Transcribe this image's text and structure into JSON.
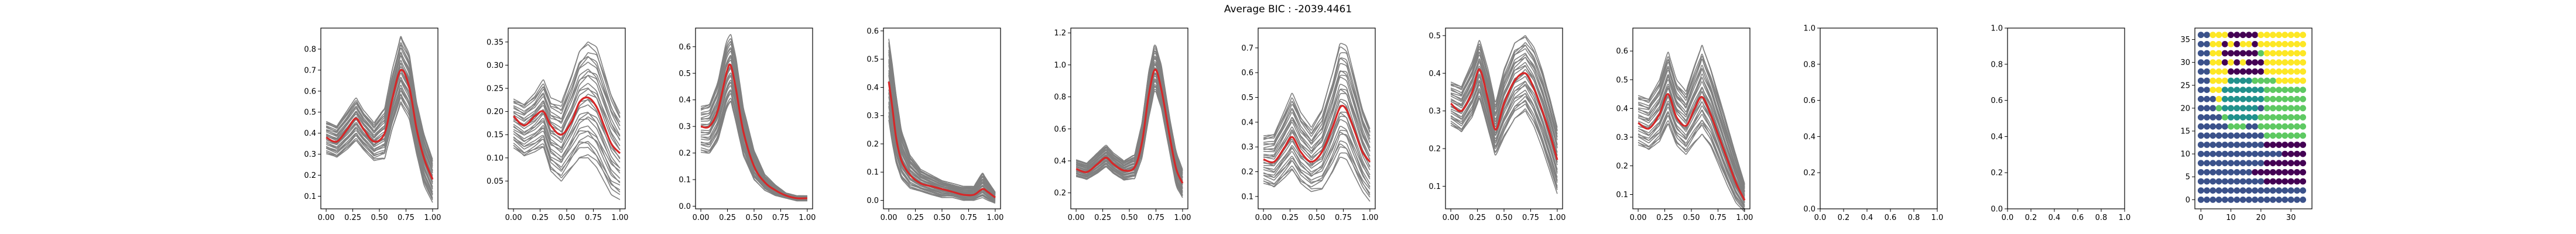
{
  "figure": {
    "title": "Average BIC : -2039.4461"
  },
  "chart_data": [
    {
      "type": "line",
      "panel": 1,
      "xticks": [
        "0.00",
        "0.25",
        "0.50",
        "0.75",
        "1.00"
      ],
      "yticks": [
        "0.1",
        "0.2",
        "0.3",
        "0.4",
        "0.5",
        "0.6",
        "0.7",
        "0.8"
      ],
      "xlim": [
        -0.05,
        1.05
      ],
      "ylim": [
        0.04,
        0.9
      ],
      "grey_curve_count": 30,
      "series": [
        {
          "role": "mean",
          "color": "#d62728",
          "x": [
            0,
            0.1,
            0.2,
            0.28,
            0.35,
            0.45,
            0.55,
            0.62,
            0.7,
            0.78,
            0.85,
            0.92,
            1.0
          ],
          "y": [
            0.38,
            0.36,
            0.42,
            0.47,
            0.42,
            0.36,
            0.4,
            0.56,
            0.7,
            0.62,
            0.42,
            0.28,
            0.18
          ]
        }
      ],
      "band": {
        "x": [
          0,
          0.1,
          0.2,
          0.28,
          0.35,
          0.45,
          0.55,
          0.62,
          0.7,
          0.78,
          0.85,
          0.92,
          1.0
        ],
        "low": [
          0.3,
          0.28,
          0.32,
          0.36,
          0.32,
          0.27,
          0.28,
          0.42,
          0.54,
          0.47,
          0.3,
          0.15,
          0.07
        ],
        "high": [
          0.46,
          0.44,
          0.51,
          0.57,
          0.51,
          0.45,
          0.52,
          0.7,
          0.86,
          0.78,
          0.55,
          0.4,
          0.28
        ]
      }
    },
    {
      "type": "line",
      "panel": 2,
      "xticks": [
        "0.00",
        "0.25",
        "0.50",
        "0.75",
        "1.00"
      ],
      "yticks": [
        "0.05",
        "0.10",
        "0.15",
        "0.20",
        "0.25",
        "0.30",
        "0.35"
      ],
      "xlim": [
        -0.05,
        1.05
      ],
      "ylim": [
        -0.01,
        0.38
      ],
      "grey_curve_count": 30,
      "series": [
        {
          "role": "mean",
          "color": "#d62728",
          "x": [
            0,
            0.1,
            0.2,
            0.28,
            0.35,
            0.45,
            0.55,
            0.62,
            0.7,
            0.78,
            0.85,
            0.92,
            1.0
          ],
          "y": [
            0.19,
            0.17,
            0.19,
            0.2,
            0.17,
            0.15,
            0.18,
            0.22,
            0.23,
            0.21,
            0.17,
            0.13,
            0.11
          ]
        }
      ],
      "band": {
        "x": [
          0,
          0.1,
          0.2,
          0.28,
          0.35,
          0.45,
          0.55,
          0.62,
          0.7,
          0.78,
          0.85,
          0.92,
          1.0
        ],
        "low": [
          0.12,
          0.1,
          0.11,
          0.12,
          0.07,
          0.05,
          0.08,
          0.1,
          0.1,
          0.08,
          0.05,
          0.02,
          0.01
        ],
        "high": [
          0.23,
          0.22,
          0.24,
          0.27,
          0.23,
          0.22,
          0.28,
          0.33,
          0.35,
          0.34,
          0.29,
          0.24,
          0.2
        ]
      }
    },
    {
      "type": "line",
      "panel": 3,
      "xticks": [
        "0.00",
        "0.25",
        "0.50",
        "0.75",
        "1.00"
      ],
      "yticks": [
        "0.0",
        "0.1",
        "0.2",
        "0.3",
        "0.4",
        "0.5",
        "0.6"
      ],
      "xlim": [
        -0.05,
        1.05
      ],
      "ylim": [
        -0.01,
        0.67
      ],
      "grey_curve_count": 30,
      "series": [
        {
          "role": "mean",
          "color": "#d62728",
          "x": [
            0,
            0.08,
            0.16,
            0.24,
            0.28,
            0.33,
            0.4,
            0.5,
            0.6,
            0.7,
            0.8,
            0.9,
            1.0
          ],
          "y": [
            0.3,
            0.3,
            0.36,
            0.5,
            0.53,
            0.44,
            0.28,
            0.15,
            0.09,
            0.06,
            0.04,
            0.03,
            0.03
          ]
        }
      ],
      "band": {
        "x": [
          0,
          0.08,
          0.16,
          0.24,
          0.28,
          0.33,
          0.4,
          0.5,
          0.6,
          0.7,
          0.8,
          0.9,
          1.0
        ],
        "low": [
          0.2,
          0.19,
          0.24,
          0.36,
          0.39,
          0.31,
          0.19,
          0.1,
          0.06,
          0.04,
          0.03,
          0.02,
          0.02
        ],
        "high": [
          0.38,
          0.39,
          0.47,
          0.62,
          0.65,
          0.56,
          0.37,
          0.21,
          0.12,
          0.08,
          0.05,
          0.04,
          0.04
        ]
      }
    },
    {
      "type": "line",
      "panel": 4,
      "xticks": [
        "0.00",
        "0.25",
        "0.50",
        "0.75",
        "1.00"
      ],
      "yticks": [
        "0.0",
        "0.1",
        "0.2",
        "0.3",
        "0.4",
        "0.5",
        "0.6"
      ],
      "xlim": [
        -0.05,
        1.05
      ],
      "ylim": [
        -0.03,
        0.61
      ],
      "grey_curve_count": 30,
      "series": [
        {
          "role": "mean",
          "color": "#d62728",
          "x": [
            0,
            0.03,
            0.07,
            0.12,
            0.2,
            0.3,
            0.4,
            0.5,
            0.6,
            0.7,
            0.8,
            0.88,
            0.93,
            1.0
          ],
          "y": [
            0.42,
            0.34,
            0.22,
            0.14,
            0.09,
            0.06,
            0.05,
            0.04,
            0.03,
            0.02,
            0.02,
            0.04,
            0.03,
            0.01
          ]
        }
      ],
      "band": {
        "x": [
          0,
          0.03,
          0.07,
          0.12,
          0.2,
          0.3,
          0.4,
          0.5,
          0.6,
          0.7,
          0.8,
          0.88,
          0.93,
          1.0
        ],
        "low": [
          0.28,
          0.2,
          0.12,
          0.07,
          0.04,
          0.03,
          0.02,
          0.01,
          0.01,
          0.0,
          0.0,
          0.01,
          0.0,
          -0.01
        ],
        "high": [
          0.58,
          0.5,
          0.38,
          0.25,
          0.16,
          0.11,
          0.09,
          0.07,
          0.06,
          0.05,
          0.05,
          0.1,
          0.07,
          0.03
        ]
      }
    },
    {
      "type": "line",
      "panel": 5,
      "xticks": [
        "0.00",
        "0.25",
        "0.50",
        "0.75",
        "1.00"
      ],
      "yticks": [
        "0.2",
        "0.4",
        "0.6",
        "0.8",
        "1.0",
        "1.2"
      ],
      "xlim": [
        -0.05,
        1.05
      ],
      "ylim": [
        0.1,
        1.23
      ],
      "grey_curve_count": 30,
      "series": [
        {
          "role": "mean",
          "color": "#d62728",
          "x": [
            0,
            0.1,
            0.2,
            0.28,
            0.35,
            0.45,
            0.55,
            0.62,
            0.68,
            0.74,
            0.8,
            0.88,
            0.94,
            1.0
          ],
          "y": [
            0.35,
            0.33,
            0.38,
            0.42,
            0.38,
            0.34,
            0.36,
            0.52,
            0.8,
            0.97,
            0.85,
            0.55,
            0.35,
            0.26
          ]
        }
      ],
      "band": {
        "x": [
          0,
          0.1,
          0.2,
          0.28,
          0.35,
          0.45,
          0.55,
          0.62,
          0.68,
          0.74,
          0.8,
          0.88,
          0.94,
          1.0
        ],
        "low": [
          0.3,
          0.28,
          0.32,
          0.36,
          0.32,
          0.28,
          0.29,
          0.42,
          0.66,
          0.85,
          0.73,
          0.45,
          0.24,
          0.17
        ],
        "high": [
          0.41,
          0.39,
          0.45,
          0.5,
          0.45,
          0.4,
          0.44,
          0.64,
          0.95,
          1.14,
          1.0,
          0.67,
          0.46,
          0.35
        ]
      }
    },
    {
      "type": "line",
      "panel": 6,
      "xticks": [
        "0.00",
        "0.25",
        "0.50",
        "0.75",
        "1.00"
      ],
      "yticks": [
        "0.1",
        "0.2",
        "0.3",
        "0.4",
        "0.5",
        "0.6",
        "0.7"
      ],
      "xlim": [
        -0.05,
        1.05
      ],
      "ylim": [
        0.05,
        0.78
      ],
      "grey_curve_count": 30,
      "series": [
        {
          "role": "mean",
          "color": "#d62728",
          "x": [
            0,
            0.1,
            0.2,
            0.27,
            0.35,
            0.45,
            0.55,
            0.65,
            0.72,
            0.78,
            0.86,
            0.93,
            1.0
          ],
          "y": [
            0.25,
            0.24,
            0.3,
            0.34,
            0.28,
            0.24,
            0.28,
            0.38,
            0.46,
            0.45,
            0.36,
            0.28,
            0.24
          ]
        }
      ],
      "band": {
        "x": [
          0,
          0.1,
          0.2,
          0.27,
          0.35,
          0.45,
          0.55,
          0.65,
          0.72,
          0.78,
          0.86,
          0.93,
          1.0
        ],
        "low": [
          0.15,
          0.13,
          0.17,
          0.2,
          0.15,
          0.12,
          0.13,
          0.2,
          0.26,
          0.25,
          0.18,
          0.12,
          0.08
        ],
        "high": [
          0.35,
          0.36,
          0.45,
          0.52,
          0.44,
          0.38,
          0.45,
          0.6,
          0.72,
          0.71,
          0.58,
          0.46,
          0.38
        ]
      }
    },
    {
      "type": "line",
      "panel": 7,
      "xticks": [
        "0.00",
        "0.25",
        "0.50",
        "0.75",
        "1.00"
      ],
      "yticks": [
        "0.1",
        "0.2",
        "0.3",
        "0.4",
        "0.5"
      ],
      "xlim": [
        -0.05,
        1.05
      ],
      "ylim": [
        0.04,
        0.52
      ],
      "grey_curve_count": 30,
      "series": [
        {
          "role": "mean",
          "color": "#d62728",
          "x": [
            0,
            0.1,
            0.2,
            0.27,
            0.35,
            0.42,
            0.5,
            0.6,
            0.7,
            0.78,
            0.86,
            0.93,
            1.0
          ],
          "y": [
            0.32,
            0.3,
            0.35,
            0.41,
            0.33,
            0.25,
            0.32,
            0.38,
            0.4,
            0.36,
            0.3,
            0.24,
            0.17
          ]
        }
      ],
      "band": {
        "x": [
          0,
          0.1,
          0.2,
          0.27,
          0.35,
          0.42,
          0.5,
          0.6,
          0.7,
          0.78,
          0.86,
          0.93,
          1.0
        ],
        "low": [
          0.26,
          0.24,
          0.28,
          0.33,
          0.25,
          0.18,
          0.23,
          0.28,
          0.3,
          0.26,
          0.2,
          0.14,
          0.08
        ],
        "high": [
          0.38,
          0.37,
          0.43,
          0.49,
          0.41,
          0.32,
          0.41,
          0.48,
          0.5,
          0.47,
          0.41,
          0.34,
          0.26
        ]
      }
    },
    {
      "type": "line",
      "panel": 8,
      "xticks": [
        "0.00",
        "0.25",
        "0.50",
        "0.75",
        "1.00"
      ],
      "yticks": [
        "0.1",
        "0.2",
        "0.3",
        "0.4",
        "0.5",
        "0.6"
      ],
      "xlim": [
        -0.05,
        1.05
      ],
      "ylim": [
        0.05,
        0.68
      ],
      "grey_curve_count": 30,
      "series": [
        {
          "role": "mean",
          "color": "#d62728",
          "x": [
            0,
            0.1,
            0.2,
            0.28,
            0.36,
            0.45,
            0.53,
            0.6,
            0.68,
            0.76,
            0.84,
            0.92,
            1.0
          ],
          "y": [
            0.35,
            0.33,
            0.38,
            0.45,
            0.37,
            0.34,
            0.4,
            0.44,
            0.38,
            0.3,
            0.22,
            0.14,
            0.08
          ]
        }
      ],
      "band": {
        "x": [
          0,
          0.1,
          0.2,
          0.28,
          0.36,
          0.45,
          0.53,
          0.6,
          0.68,
          0.76,
          0.84,
          0.92,
          1.0
        ],
        "low": [
          0.27,
          0.25,
          0.28,
          0.34,
          0.27,
          0.24,
          0.28,
          0.31,
          0.27,
          0.2,
          0.13,
          0.07,
          0.04
        ],
        "high": [
          0.45,
          0.44,
          0.5,
          0.6,
          0.5,
          0.46,
          0.55,
          0.62,
          0.54,
          0.44,
          0.34,
          0.24,
          0.14
        ]
      }
    },
    {
      "type": "line",
      "panel": 9,
      "empty": true,
      "xticks": [
        "0.0",
        "0.2",
        "0.4",
        "0.6",
        "0.8",
        "1.0"
      ],
      "yticks": [
        "0.0",
        "0.2",
        "0.4",
        "0.6",
        "0.8",
        "1.0"
      ],
      "xlim": [
        0,
        1
      ],
      "ylim": [
        0,
        1
      ],
      "series": []
    },
    {
      "type": "line",
      "panel": 10,
      "empty": true,
      "xticks": [
        "0.0",
        "0.2",
        "0.4",
        "0.6",
        "0.8",
        "1.0"
      ],
      "yticks": [
        "0.0",
        "0.2",
        "0.4",
        "0.6",
        "0.8",
        "1.0"
      ],
      "xlim": [
        0,
        1
      ],
      "ylim": [
        0,
        1
      ],
      "series": []
    },
    {
      "type": "scatter",
      "panel": 11,
      "xticks": [
        "0",
        "10",
        "20",
        "30"
      ],
      "yticks": [
        "0",
        "5",
        "10",
        "15",
        "20",
        "25",
        "30",
        "35"
      ],
      "xlim": [
        -2,
        37
      ],
      "ylim": [
        -2,
        37.5
      ],
      "grid": {
        "x_start": 0,
        "x_step": 2,
        "x_count": 18,
        "y_start": 0,
        "y_step": 2,
        "y_count": 19
      },
      "palette": [
        "#440154",
        "#3b528b",
        "#21918c",
        "#5ec962",
        "#fde725"
      ],
      "rows_top_to_bottom": [
        "114440000044444444",
        "114404044044444444",
        "114400000034444444",
        "114404040004444444",
        "114440000004444444",
        "114442222333344444",
        "114422222223333333",
        "111422222223333333",
        "111322222213333333",
        "111132222233333333",
        "111113331133333333",
        "111111111113333333",
        "111111111110000000",
        "111111111111110000",
        "111111111110000000",
        "111111111000000000",
        "111111111110000000",
        "111111111111111111",
        "111111111111111111"
      ]
    }
  ]
}
